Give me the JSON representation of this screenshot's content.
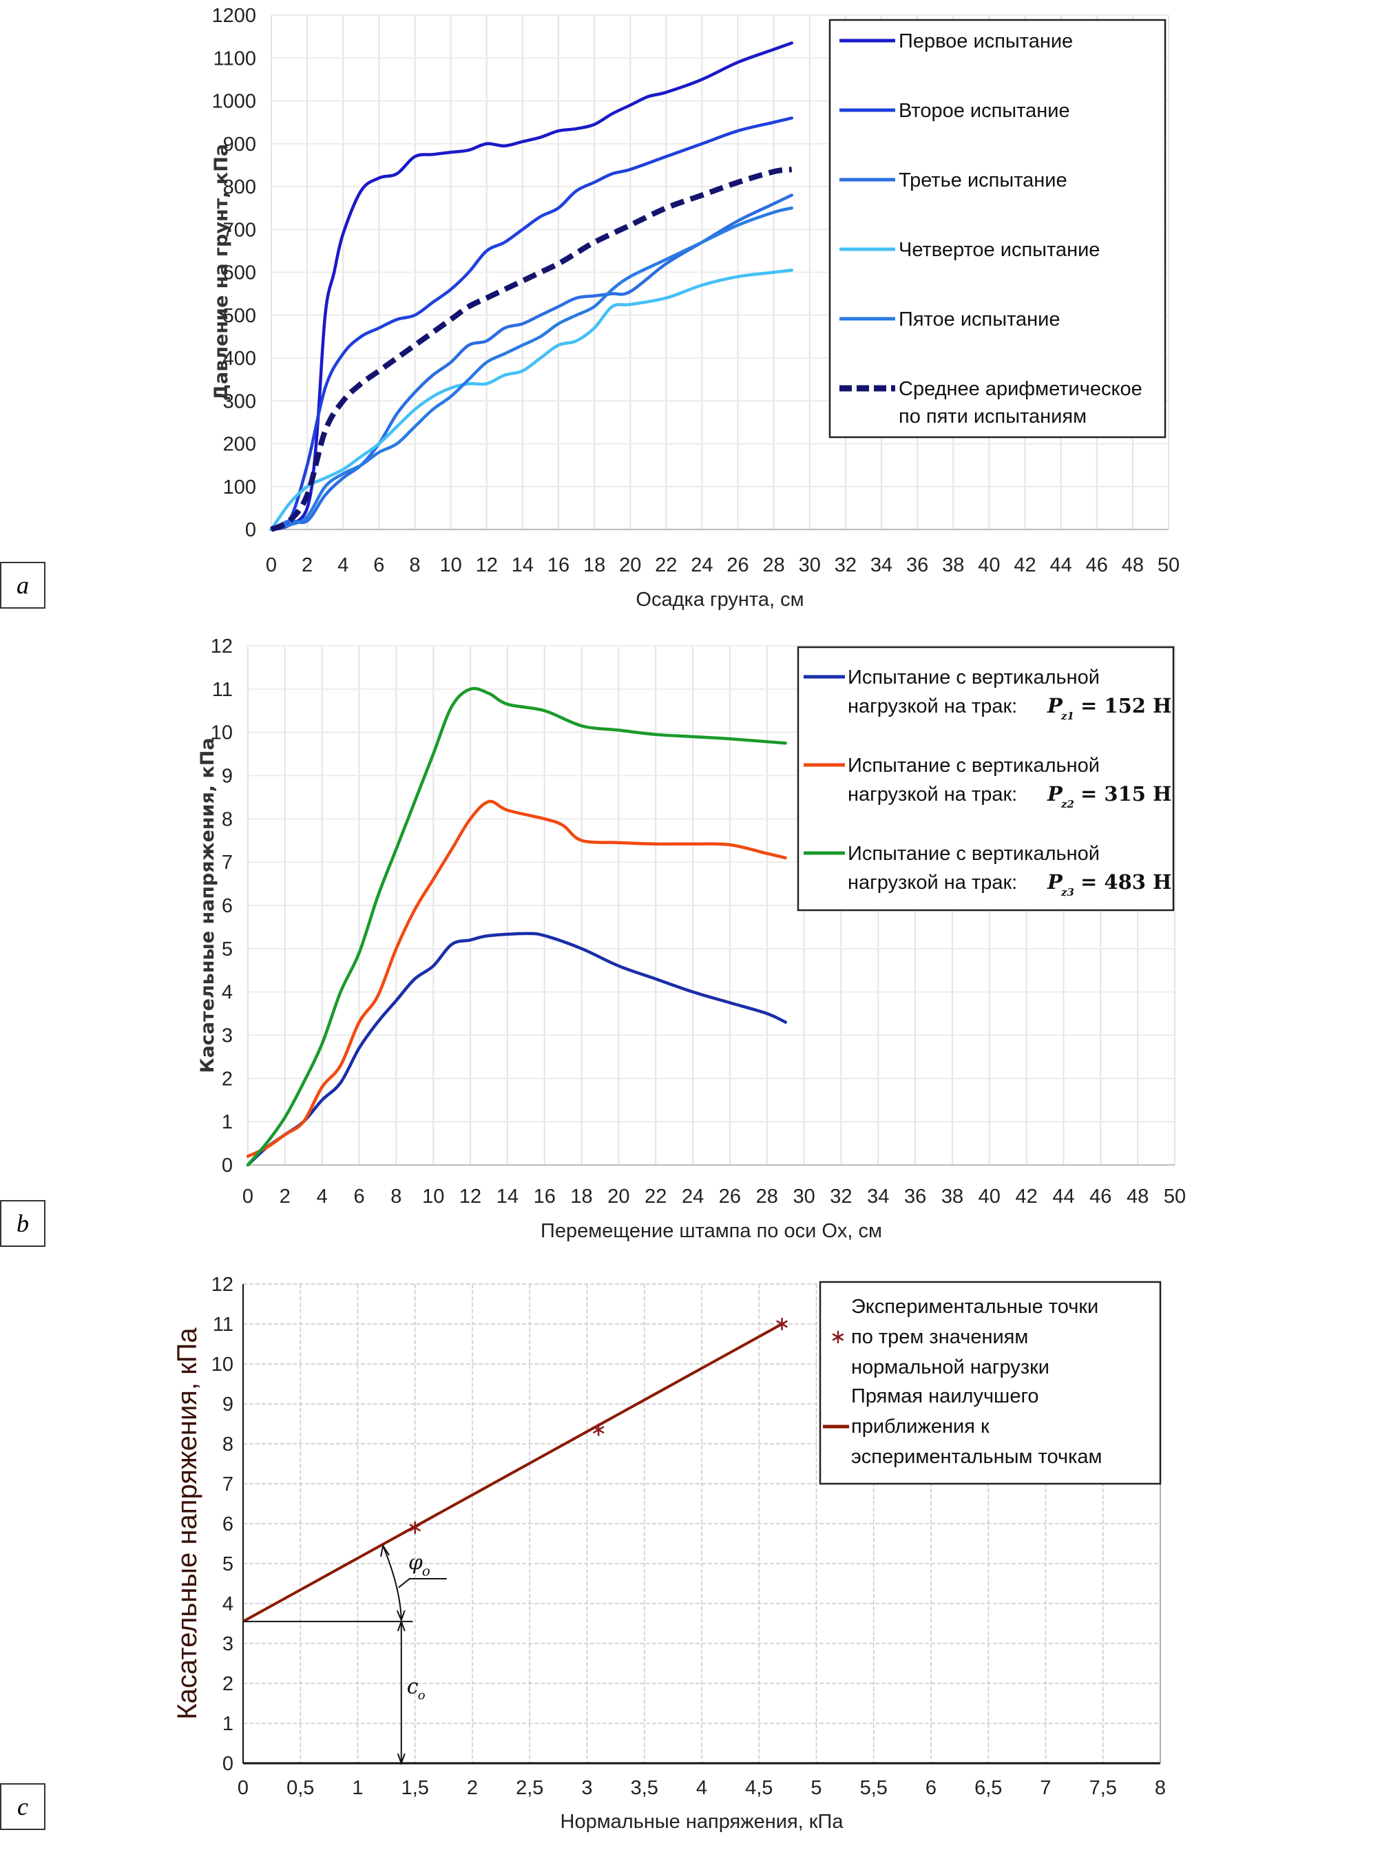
{
  "panel_labels": {
    "a": "a",
    "b": "b",
    "c": "c"
  },
  "chart_data": [
    {
      "id": "a",
      "type": "line",
      "xlabel": "Осадка грунта, см",
      "ylabel": "Давление на грунт, кПа",
      "xlim": [
        0,
        50
      ],
      "ylim": [
        0,
        1200
      ],
      "xticks": [
        "0",
        "2",
        "4",
        "6",
        "8",
        "10",
        "12",
        "14",
        "16",
        "18",
        "20",
        "22",
        "24",
        "26",
        "28",
        "30",
        "32",
        "34",
        "36",
        "38",
        "40",
        "42",
        "44",
        "46",
        "48",
        "50"
      ],
      "yticks": [
        "0",
        "100",
        "200",
        "300",
        "400",
        "500",
        "600",
        "700",
        "800",
        "900",
        "1000",
        "1100",
        "1200"
      ],
      "grid": true,
      "legend_position": "top-right",
      "series": [
        {
          "name": "Первое испытание",
          "color": "#1a1ac8",
          "dashed": false,
          "x": [
            0,
            1,
            2,
            2.5,
            3,
            3.5,
            4,
            5,
            6,
            7,
            8,
            9,
            10,
            11,
            12,
            13,
            14,
            15,
            16,
            17,
            18,
            19,
            20,
            21,
            22,
            24,
            26,
            28,
            29
          ],
          "y": [
            0,
            10,
            50,
            200,
            500,
            600,
            690,
            790,
            820,
            830,
            870,
            875,
            880,
            885,
            900,
            895,
            905,
            915,
            930,
            935,
            945,
            970,
            990,
            1010,
            1020,
            1050,
            1090,
            1120,
            1135
          ]
        },
        {
          "name": "Второе испытание",
          "color": "#2040dc",
          "dashed": false,
          "x": [
            0,
            1,
            2,
            3,
            4,
            5,
            6,
            7,
            8,
            9,
            10,
            11,
            12,
            13,
            14,
            15,
            16,
            17,
            18,
            19,
            20,
            22,
            24,
            26,
            28,
            29
          ],
          "y": [
            0,
            20,
            150,
            330,
            410,
            450,
            470,
            490,
            500,
            530,
            560,
            600,
            650,
            670,
            700,
            730,
            750,
            790,
            810,
            830,
            840,
            870,
            900,
            930,
            950,
            960
          ]
        },
        {
          "name": "Третье испытание",
          "color": "#2a6ee0",
          "dashed": false,
          "x": [
            0,
            1,
            2,
            3,
            4,
            5,
            6,
            7,
            8,
            9,
            10,
            11,
            12,
            13,
            14,
            15,
            16,
            17,
            18,
            19,
            20,
            22,
            24,
            26,
            28,
            29
          ],
          "y": [
            0,
            20,
            20,
            80,
            120,
            150,
            200,
            270,
            320,
            360,
            390,
            430,
            440,
            470,
            480,
            500,
            520,
            540,
            545,
            550,
            555,
            620,
            670,
            720,
            760,
            780
          ]
        },
        {
          "name": "Четвертое испытание",
          "color": "#45c0f5",
          "dashed": false,
          "x": [
            0,
            1,
            2,
            3,
            4,
            5,
            6,
            7,
            8,
            9,
            10,
            11,
            12,
            13,
            14,
            15,
            16,
            17,
            18,
            19,
            20,
            22,
            24,
            26,
            28,
            29
          ],
          "y": [
            0,
            60,
            100,
            120,
            140,
            170,
            200,
            240,
            280,
            310,
            330,
            340,
            340,
            360,
            370,
            400,
            430,
            440,
            470,
            520,
            525,
            540,
            570,
            590,
            600,
            605
          ]
        },
        {
          "name": "Пятое испытание",
          "color": "#2a7ae2",
          "dashed": false,
          "x": [
            0,
            1,
            2,
            3,
            4,
            5,
            6,
            7,
            8,
            9,
            10,
            11,
            12,
            13,
            14,
            15,
            16,
            17,
            18,
            19,
            20,
            22,
            24,
            26,
            28,
            29
          ],
          "y": [
            0,
            10,
            30,
            100,
            130,
            150,
            180,
            200,
            240,
            280,
            310,
            350,
            390,
            410,
            430,
            450,
            480,
            500,
            520,
            560,
            590,
            630,
            670,
            710,
            740,
            750
          ]
        },
        {
          "name": "Среднее арифметическое",
          "name_line2": "по пяти испытаниям",
          "color": "#14146e",
          "dashed": true,
          "x": [
            0,
            1,
            2,
            3,
            4,
            5,
            6,
            7,
            8,
            9,
            10,
            11,
            12,
            13,
            14,
            15,
            16,
            17,
            18,
            20,
            22,
            24,
            26,
            28,
            29
          ],
          "y": [
            0,
            20,
            80,
            230,
            300,
            340,
            370,
            400,
            430,
            460,
            490,
            520,
            540,
            560,
            580,
            600,
            620,
            645,
            670,
            710,
            750,
            780,
            810,
            835,
            840
          ]
        }
      ]
    },
    {
      "id": "b",
      "type": "line",
      "xlabel": "Перемещение штампа по оси Ox, см",
      "ylabel": "Касательные напряжения, кПа",
      "xlim": [
        0,
        50
      ],
      "ylim": [
        0,
        12
      ],
      "xticks": [
        "0",
        "2",
        "4",
        "6",
        "8",
        "10",
        "12",
        "14",
        "16",
        "18",
        "20",
        "22",
        "24",
        "26",
        "28",
        "30",
        "32",
        "34",
        "36",
        "38",
        "40",
        "42",
        "44",
        "46",
        "48",
        "50"
      ],
      "yticks": [
        "0",
        "1",
        "2",
        "3",
        "4",
        "5",
        "6",
        "7",
        "8",
        "9",
        "10",
        "11",
        "12"
      ],
      "grid": true,
      "legend_position": "top-right",
      "series": [
        {
          "name": "Испытание с вертикальной",
          "name_line2": "нагрузкой на трак:",
          "symbol": "P",
          "subscript": "z1",
          "load": "= 152 Н",
          "color": "#1a2ea8",
          "x": [
            0,
            1,
            2,
            3,
            4,
            5,
            6,
            7,
            8,
            9,
            10,
            11,
            12,
            13,
            15,
            16,
            18,
            20,
            22,
            24,
            26,
            28,
            29
          ],
          "y": [
            0,
            0.4,
            0.7,
            1.0,
            1.5,
            1.9,
            2.7,
            3.3,
            3.8,
            4.3,
            4.6,
            5.1,
            5.2,
            5.3,
            5.35,
            5.3,
            5.0,
            4.6,
            4.3,
            4.0,
            3.75,
            3.5,
            3.3
          ]
        },
        {
          "name": "Испытание с вертикальной",
          "name_line2": "нагрузкой на трак:",
          "symbol": "P",
          "subscript": "z2",
          "load": "= 315 Н",
          "color": "#f04a10",
          "x": [
            0,
            1,
            2,
            3,
            4,
            5,
            6,
            7,
            8,
            9,
            10,
            11,
            12,
            13,
            14,
            16,
            17,
            18,
            20,
            22,
            24,
            26,
            28,
            29
          ],
          "y": [
            0.2,
            0.4,
            0.7,
            1.0,
            1.8,
            2.3,
            3.3,
            3.9,
            5.0,
            5.9,
            6.6,
            7.3,
            8.0,
            8.4,
            8.2,
            8.0,
            7.85,
            7.5,
            7.45,
            7.42,
            7.42,
            7.4,
            7.2,
            7.1
          ]
        },
        {
          "name": "Испытание с вертикальной",
          "name_line2": "нагрузкой на трак:",
          "symbol": "P",
          "subscript": "z3",
          "load": "= 483 Н",
          "color": "#1a9a2a",
          "x": [
            0,
            1,
            2,
            3,
            4,
            5,
            6,
            7,
            8,
            9,
            10,
            11,
            12,
            13,
            14,
            16,
            18,
            20,
            22,
            24,
            26,
            29
          ],
          "y": [
            0,
            0.5,
            1.1,
            1.9,
            2.8,
            4.0,
            4.9,
            6.2,
            7.3,
            8.4,
            9.5,
            10.6,
            11.0,
            10.9,
            10.65,
            10.5,
            10.15,
            10.05,
            9.95,
            9.9,
            9.85,
            9.75
          ]
        }
      ]
    },
    {
      "id": "c",
      "type": "scatter",
      "xlabel": "Нормальные напряжения, кПа",
      "ylabel": "Касательные напряжения,  кПа",
      "xlim": [
        0,
        8
      ],
      "ylim": [
        0,
        12
      ],
      "xticks": [
        "0",
        "0,5",
        "1",
        "1,5",
        "2",
        "2,5",
        "3",
        "3,5",
        "4",
        "4,5",
        "5",
        "5,5",
        "6",
        "6,5",
        "7",
        "7,5",
        "8"
      ],
      "yticks": [
        "0",
        "1",
        "2",
        "3",
        "4",
        "5",
        "6",
        "7",
        "8",
        "9",
        "10",
        "11",
        "12"
      ],
      "grid": true,
      "legend_position": "top-right",
      "points": {
        "name_lines": [
          "Экспериментальные точки",
          "по трем значениям",
          "нормальной нагрузки"
        ],
        "color": "#8b1a1a",
        "x": [
          1.5,
          3.1,
          4.7
        ],
        "y": [
          5.9,
          8.35,
          11.0
        ]
      },
      "fit_line": {
        "name_lines": [
          "Прямая наилучшего",
          "приближения к",
          "эспериментальным точкам"
        ],
        "color": "#8b1a00",
        "x": [
          0,
          4.7
        ],
        "y": [
          3.55,
          11.0
        ]
      },
      "annotations": {
        "cohesion_value": 3.55,
        "angle_label": "φ",
        "angle_sub": "o",
        "cohesion_label": "c",
        "cohesion_sub": "o"
      }
    }
  ]
}
